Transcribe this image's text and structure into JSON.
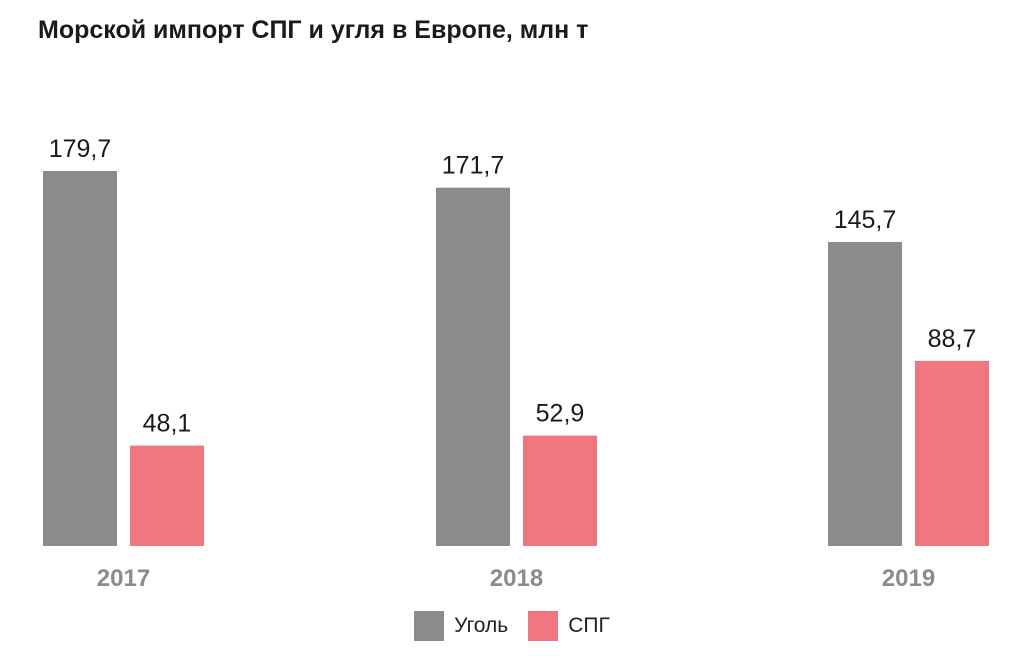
{
  "chart_data": {
    "type": "bar",
    "title": "Морской импорт СПГ и угля в Европе, млн т",
    "categories": [
      "2017",
      "2018",
      "2019"
    ],
    "series": [
      {
        "name": "Уголь",
        "color": "#8a8b8d",
        "values": [
          179.7,
          171.7,
          145.7
        ],
        "labels": [
          "179,7",
          "171,7",
          "145,7"
        ]
      },
      {
        "name": "СПГ",
        "color": "#f07680",
        "values": [
          48.1,
          52.9,
          88.7
        ],
        "labels": [
          "48,1",
          "52,9",
          "88,7"
        ]
      }
    ],
    "ylim": [
      0,
      179.7
    ],
    "grid": false,
    "legend_position": "bottom-center"
  }
}
